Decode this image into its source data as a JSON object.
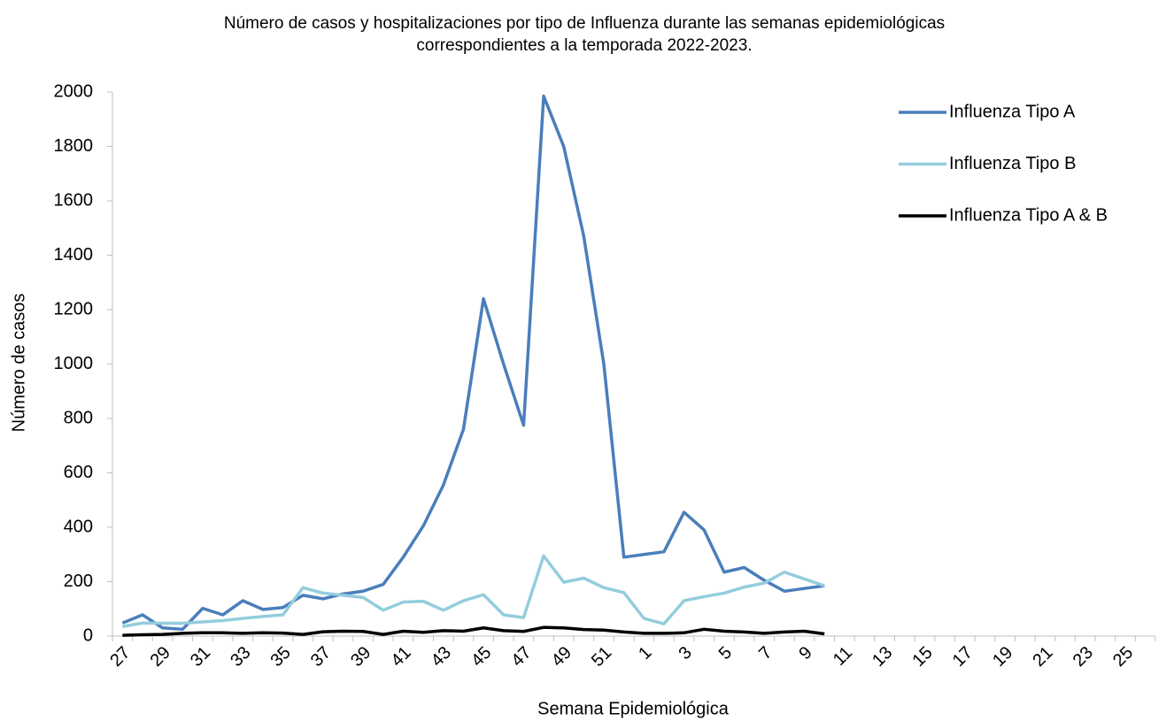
{
  "chart_data": {
    "type": "line",
    "title": "Número de casos y hospitalizaciones por tipo de Influenza durante las semanas epidemiológicas correspondientes a la temporada 2022-2023.",
    "x_label": "Semana Epidemiológica",
    "y_label": "Número de casos",
    "categories": [
      "27",
      null,
      "29",
      null,
      "31",
      null,
      "33",
      null,
      "35",
      null,
      "37",
      null,
      "39",
      null,
      "41",
      null,
      "43",
      null,
      "45",
      null,
      "47",
      null,
      "49",
      null,
      "51",
      null,
      "1",
      null,
      "3",
      null,
      "5",
      null,
      "7",
      null,
      "9",
      null,
      "11",
      null,
      "13",
      null,
      "15",
      null,
      "17",
      null,
      "19",
      null,
      "21",
      null,
      "23",
      null,
      "25",
      null
    ],
    "series": [
      {
        "name": "Influenza Tipo A",
        "color": "#4a7ebb",
        "values": [
          48,
          78,
          30,
          25,
          102,
          78,
          130,
          98,
          105,
          150,
          137,
          155,
          165,
          190,
          290,
          405,
          555,
          760,
          1240,
          1000,
          775,
          1985,
          1800,
          1470,
          1000,
          290,
          300,
          310,
          455,
          390,
          235,
          252,
          205,
          165,
          175,
          185,
          null,
          null,
          null,
          null,
          null,
          null,
          null,
          null,
          null,
          null,
          null,
          null,
          null,
          null,
          null,
          null
        ]
      },
      {
        "name": "Influenza Tipo B",
        "color": "#93cddd",
        "values": [
          35,
          48,
          47,
          47,
          52,
          57,
          65,
          72,
          78,
          178,
          158,
          150,
          142,
          95,
          125,
          128,
          95,
          130,
          152,
          78,
          68,
          295,
          198,
          213,
          178,
          160,
          65,
          45,
          130,
          145,
          158,
          180,
          195,
          235,
          210,
          185,
          null,
          null,
          null,
          null,
          null,
          null,
          null,
          null,
          null,
          null,
          null,
          null,
          null,
          null,
          null,
          null
        ]
      },
      {
        "name": "Influenza Tipo A & B",
        "color": "#000000",
        "values": [
          3,
          5,
          6,
          10,
          12,
          12,
          10,
          12,
          11,
          6,
          16,
          18,
          17,
          6,
          18,
          14,
          20,
          18,
          30,
          20,
          17,
          32,
          30,
          24,
          22,
          15,
          10,
          10,
          12,
          25,
          18,
          15,
          10,
          15,
          18,
          8,
          null,
          null,
          null,
          null,
          null,
          null,
          null,
          null,
          null,
          null,
          null,
          null,
          null,
          null,
          null,
          null
        ]
      }
    ],
    "ylim": [
      0,
      2000
    ],
    "yticks": [
      0,
      200,
      400,
      600,
      800,
      1000,
      1200,
      1400,
      1600,
      1800,
      2000
    ],
    "grid": false,
    "legend": "top-right"
  }
}
